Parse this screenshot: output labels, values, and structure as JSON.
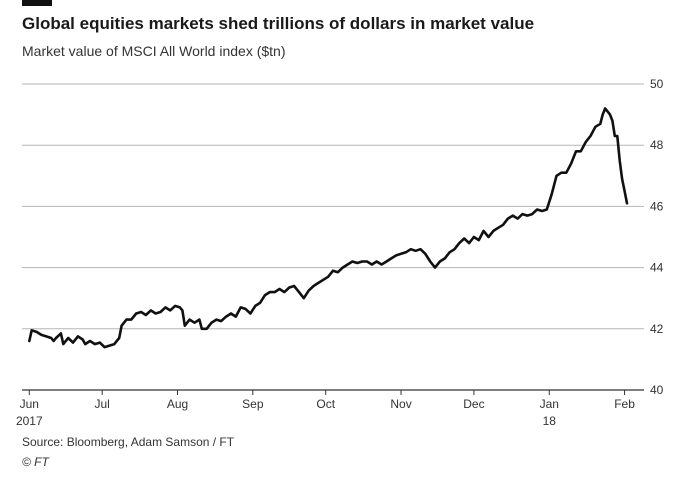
{
  "chart_data": {
    "type": "line",
    "title": "Global equities markets shed trillions of dollars in market value",
    "subtitle": "Market value of MSCI All World index ($tn)",
    "ylabel": "$tn",
    "xlabel": "",
    "ylim": [
      40,
      50
    ],
    "yticks": [
      40,
      42,
      44,
      46,
      48,
      50
    ],
    "xticks": [
      {
        "label": "Jun",
        "sublabel": "2017",
        "t": 0
      },
      {
        "label": "Jul",
        "sublabel": "",
        "t": 30
      },
      {
        "label": "Aug",
        "sublabel": "",
        "t": 61
      },
      {
        "label": "Sep",
        "sublabel": "",
        "t": 92
      },
      {
        "label": "Oct",
        "sublabel": "",
        "t": 122
      },
      {
        "label": "Nov",
        "sublabel": "",
        "t": 153
      },
      {
        "label": "Dec",
        "sublabel": "",
        "t": 183
      },
      {
        "label": "Jan",
        "sublabel": "18",
        "t": 214
      },
      {
        "label": "Feb",
        "sublabel": "",
        "t": 245
      }
    ],
    "xrange": [
      -3,
      253
    ],
    "grid": true,
    "series": [
      {
        "name": "MSCI All World index market value",
        "color": "#111111",
        "points": [
          [
            0,
            41.6
          ],
          [
            1,
            41.95
          ],
          [
            3,
            41.9
          ],
          [
            5,
            41.8
          ],
          [
            7,
            41.75
          ],
          [
            9,
            41.7
          ],
          [
            10,
            41.6
          ],
          [
            11,
            41.7
          ],
          [
            13,
            41.85
          ],
          [
            14,
            41.5
          ],
          [
            16,
            41.7
          ],
          [
            18,
            41.55
          ],
          [
            20,
            41.75
          ],
          [
            22,
            41.65
          ],
          [
            23,
            41.5
          ],
          [
            25,
            41.6
          ],
          [
            27,
            41.5
          ],
          [
            29,
            41.55
          ],
          [
            31,
            41.4
          ],
          [
            33,
            41.45
          ],
          [
            35,
            41.5
          ],
          [
            37,
            41.7
          ],
          [
            38,
            42.1
          ],
          [
            40,
            42.3
          ],
          [
            42,
            42.3
          ],
          [
            44,
            42.5
          ],
          [
            46,
            42.55
          ],
          [
            48,
            42.45
          ],
          [
            50,
            42.6
          ],
          [
            52,
            42.5
          ],
          [
            54,
            42.55
          ],
          [
            56,
            42.7
          ],
          [
            58,
            42.6
          ],
          [
            60,
            42.75
          ],
          [
            62,
            42.7
          ],
          [
            63,
            42.6
          ],
          [
            64,
            42.1
          ],
          [
            66,
            42.3
          ],
          [
            68,
            42.2
          ],
          [
            70,
            42.3
          ],
          [
            71,
            42.0
          ],
          [
            73,
            42.0
          ],
          [
            75,
            42.2
          ],
          [
            77,
            42.3
          ],
          [
            79,
            42.25
          ],
          [
            81,
            42.4
          ],
          [
            83,
            42.5
          ],
          [
            85,
            42.4
          ],
          [
            87,
            42.7
          ],
          [
            89,
            42.65
          ],
          [
            91,
            42.5
          ],
          [
            93,
            42.75
          ],
          [
            95,
            42.85
          ],
          [
            97,
            43.1
          ],
          [
            99,
            43.2
          ],
          [
            101,
            43.2
          ],
          [
            103,
            43.3
          ],
          [
            105,
            43.2
          ],
          [
            107,
            43.35
          ],
          [
            109,
            43.4
          ],
          [
            111,
            43.2
          ],
          [
            113,
            43.0
          ],
          [
            115,
            43.25
          ],
          [
            117,
            43.4
          ],
          [
            119,
            43.5
          ],
          [
            121,
            43.6
          ],
          [
            123,
            43.7
          ],
          [
            125,
            43.9
          ],
          [
            127,
            43.85
          ],
          [
            129,
            44.0
          ],
          [
            131,
            44.1
          ],
          [
            133,
            44.2
          ],
          [
            135,
            44.15
          ],
          [
            137,
            44.2
          ],
          [
            139,
            44.2
          ],
          [
            141,
            44.1
          ],
          [
            143,
            44.2
          ],
          [
            145,
            44.1
          ],
          [
            147,
            44.2
          ],
          [
            149,
            44.3
          ],
          [
            151,
            44.4
          ],
          [
            153,
            44.45
          ],
          [
            155,
            44.5
          ],
          [
            157,
            44.6
          ],
          [
            159,
            44.55
          ],
          [
            161,
            44.6
          ],
          [
            163,
            44.45
          ],
          [
            165,
            44.2
          ],
          [
            167,
            44.0
          ],
          [
            169,
            44.2
          ],
          [
            171,
            44.3
          ],
          [
            173,
            44.5
          ],
          [
            175,
            44.6
          ],
          [
            177,
            44.8
          ],
          [
            179,
            44.95
          ],
          [
            181,
            44.8
          ],
          [
            183,
            45.0
          ],
          [
            185,
            44.9
          ],
          [
            187,
            45.2
          ],
          [
            189,
            45.0
          ],
          [
            191,
            45.2
          ],
          [
            193,
            45.3
          ],
          [
            195,
            45.4
          ],
          [
            197,
            45.6
          ],
          [
            199,
            45.7
          ],
          [
            201,
            45.6
          ],
          [
            203,
            45.75
          ],
          [
            205,
            45.7
          ],
          [
            207,
            45.75
          ],
          [
            209,
            45.9
          ],
          [
            211,
            45.85
          ],
          [
            213,
            45.9
          ],
          [
            215,
            46.4
          ],
          [
            217,
            47.0
          ],
          [
            219,
            47.1
          ],
          [
            221,
            47.1
          ],
          [
            223,
            47.4
          ],
          [
            225,
            47.8
          ],
          [
            227,
            47.8
          ],
          [
            229,
            48.1
          ],
          [
            231,
            48.3
          ],
          [
            233,
            48.6
          ],
          [
            235,
            48.7
          ],
          [
            236,
            49.0
          ],
          [
            237,
            49.2
          ],
          [
            238,
            49.1
          ],
          [
            239,
            49.0
          ],
          [
            240,
            48.8
          ],
          [
            241,
            48.3
          ],
          [
            242,
            48.3
          ],
          [
            243,
            47.5
          ],
          [
            244,
            46.9
          ],
          [
            245,
            46.5
          ],
          [
            246,
            46.1
          ]
        ]
      }
    ]
  },
  "footer": {
    "source": "Source: Bloomberg, Adam Samson / FT",
    "copyright": "© FT"
  },
  "colors": {
    "line": "#111111",
    "grid": "#b5b5b5",
    "axis": "#333333",
    "accent_bar": "#111111"
  }
}
